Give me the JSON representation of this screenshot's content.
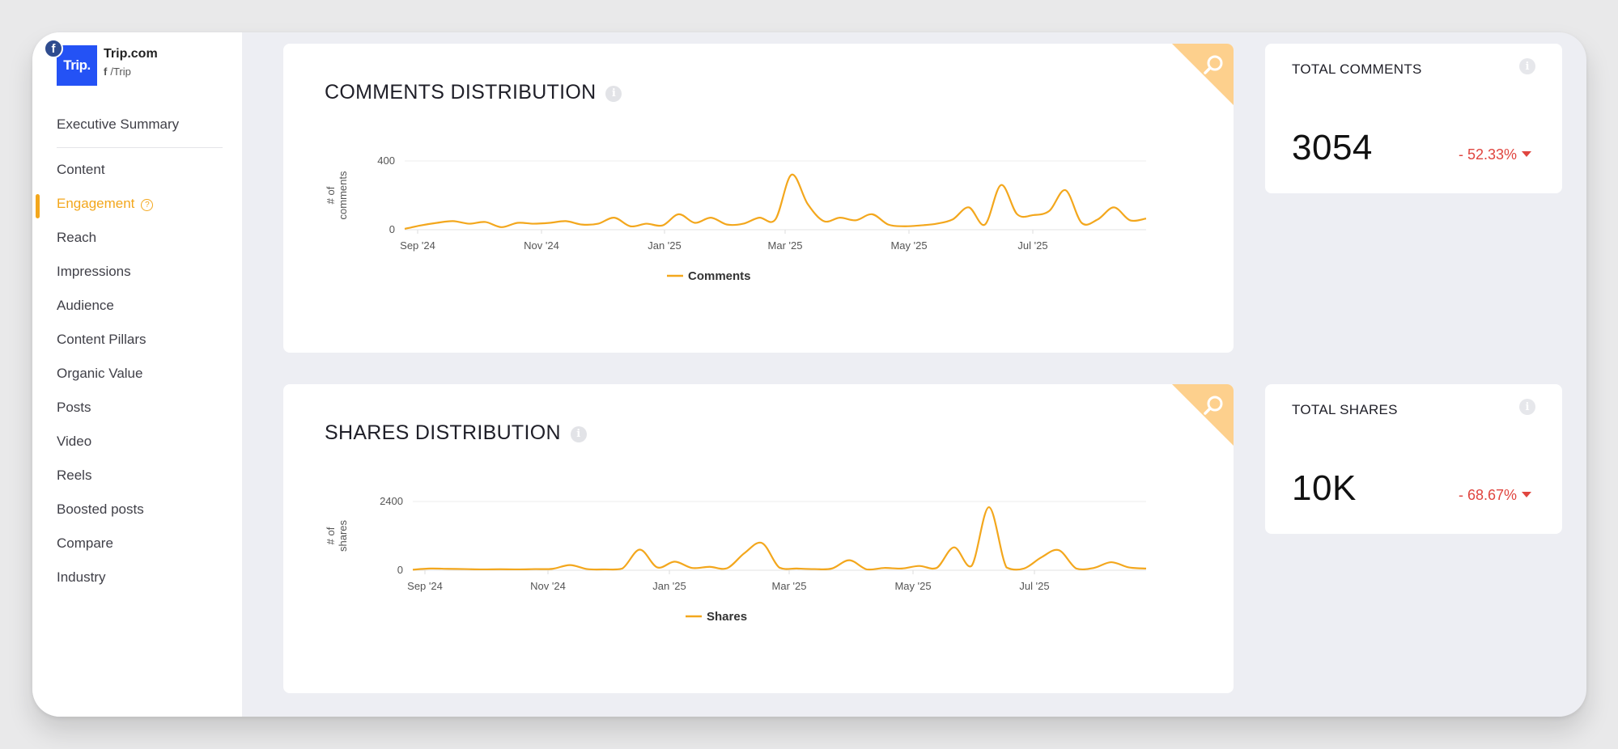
{
  "brand": {
    "logo_text": "Trip.",
    "name": "Trip.com",
    "handle": "/Trip",
    "network_icon": "facebook-icon"
  },
  "sidebar": {
    "items": [
      {
        "label": "Executive Summary"
      },
      {
        "label": "Content"
      },
      {
        "label": "Engagement",
        "active": true
      },
      {
        "label": "Reach"
      },
      {
        "label": "Impressions"
      },
      {
        "label": "Audience"
      },
      {
        "label": "Content Pillars"
      },
      {
        "label": "Organic Value"
      },
      {
        "label": "Posts"
      },
      {
        "label": "Video"
      },
      {
        "label": "Reels"
      },
      {
        "label": "Boosted posts"
      },
      {
        "label": "Compare"
      },
      {
        "label": "Industry"
      }
    ]
  },
  "colors": {
    "accent": "#f3a71d",
    "corner": "#fdd08d",
    "negative": "#e0453f"
  },
  "comments": {
    "title": "COMMENTS DISTRIBUTION",
    "kpi_title": "TOTAL COMMENTS",
    "kpi_value": "3054",
    "kpi_change": "- 52.33%"
  },
  "shares": {
    "title": "SHARES DISTRIBUTION",
    "kpi_title": "TOTAL SHARES",
    "kpi_value": "10K",
    "kpi_change": "- 68.67%"
  },
  "chart_data": [
    {
      "type": "line",
      "ylabel": "# of comments",
      "ylim": [
        0,
        400
      ],
      "y_ticks": [
        "0",
        "400"
      ],
      "x_ticks": [
        "Sep '24",
        "Nov '24",
        "Jan '25",
        "Mar '25",
        "May '25",
        "Jul '25"
      ],
      "x_start": "2024-08-26",
      "x_end": "2025-09-30",
      "series": [
        {
          "name": "Comments",
          "values": [
            5,
            25,
            40,
            50,
            35,
            45,
            15,
            40,
            35,
            40,
            50,
            30,
            35,
            70,
            20,
            35,
            25,
            90,
            40,
            70,
            30,
            35,
            70,
            60,
            320,
            150,
            50,
            70,
            55,
            90,
            30,
            20,
            25,
            35,
            60,
            130,
            30,
            260,
            90,
            85,
            110,
            230,
            40,
            60,
            130,
            55,
            65
          ]
        }
      ],
      "legend": "bottom-center",
      "grid": true
    },
    {
      "type": "line",
      "ylabel": "# of shares",
      "ylim": [
        0,
        2400
      ],
      "y_ticks": [
        "0",
        "2400"
      ],
      "x_ticks": [
        "Sep '24",
        "Nov '24",
        "Jan '25",
        "Mar '25",
        "May '25",
        "Jul '25"
      ],
      "x_start": "2024-08-26",
      "x_end": "2025-09-30",
      "series": [
        {
          "name": "Shares",
          "values": [
            20,
            60,
            50,
            40,
            30,
            35,
            30,
            40,
            50,
            180,
            40,
            30,
            60,
            720,
            100,
            300,
            80,
            120,
            70,
            600,
            950,
            90,
            60,
            40,
            60,
            350,
            30,
            80,
            60,
            150,
            80,
            800,
            150,
            2200,
            100,
            60,
            450,
            700,
            60,
            80,
            280,
            100,
            60
          ]
        }
      ],
      "legend": "bottom-center",
      "grid": true
    }
  ]
}
